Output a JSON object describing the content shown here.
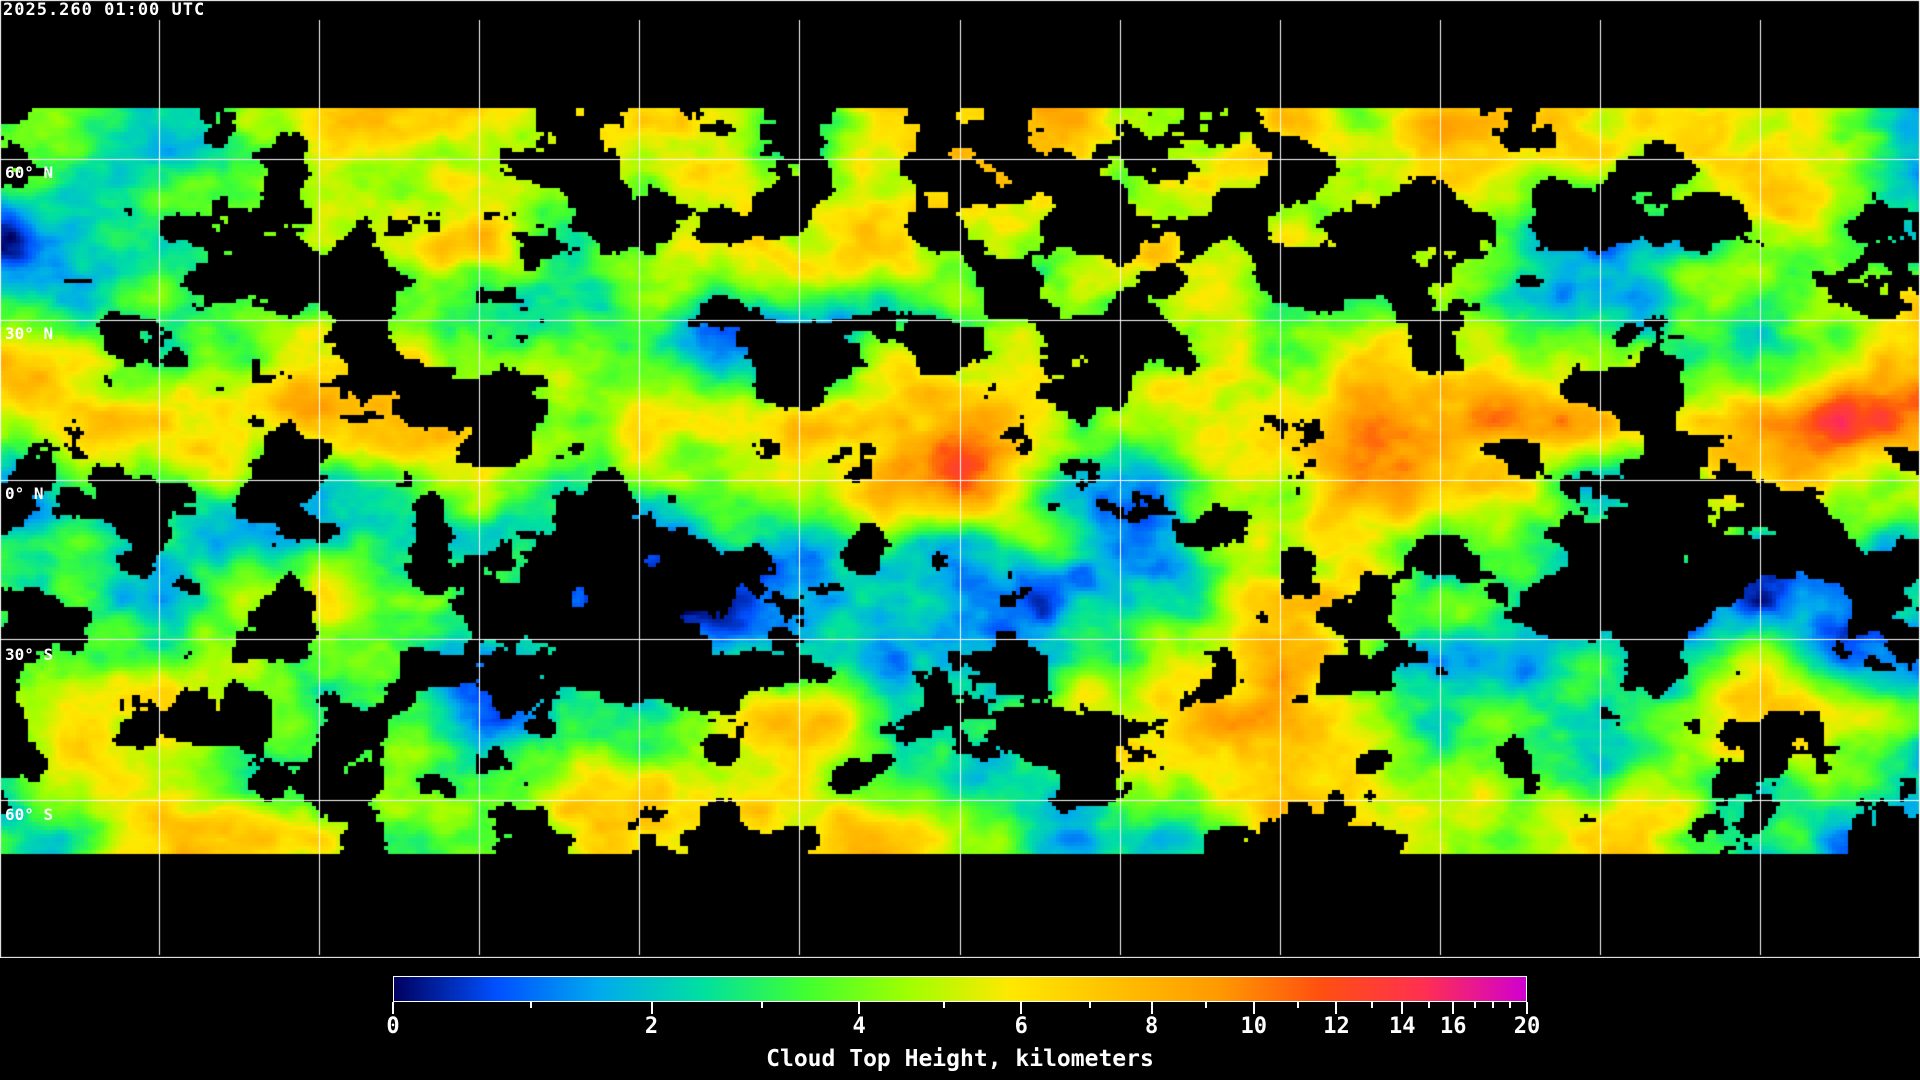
{
  "timestamp": "2025.260 01:00 UTC",
  "map": {
    "projection": "equirectangular",
    "grid_color": "#ffffff",
    "coastline_color": "#ffffff",
    "background": "#000000",
    "lat_labels": [
      "60° N",
      "30° N",
      "0° N",
      "30° S",
      "60° S"
    ]
  },
  "colorbar": {
    "title": "Cloud Top Height, kilometers",
    "range": [
      0,
      20
    ],
    "major_ticks": [
      "0",
      "2",
      "4",
      "6",
      "8",
      "10",
      "12",
      "14",
      "16",
      "20"
    ],
    "minor_ticks": [
      1,
      3,
      5,
      7,
      9,
      11,
      13,
      15,
      17,
      18,
      19
    ],
    "colors": [
      "#000060",
      "#0050ff",
      "#00aaee",
      "#00e0a0",
      "#40ff30",
      "#a0ff00",
      "#ffe800",
      "#ffc000",
      "#ff9a00",
      "#ff5010",
      "#ff3050",
      "#d000d0"
    ]
  }
}
